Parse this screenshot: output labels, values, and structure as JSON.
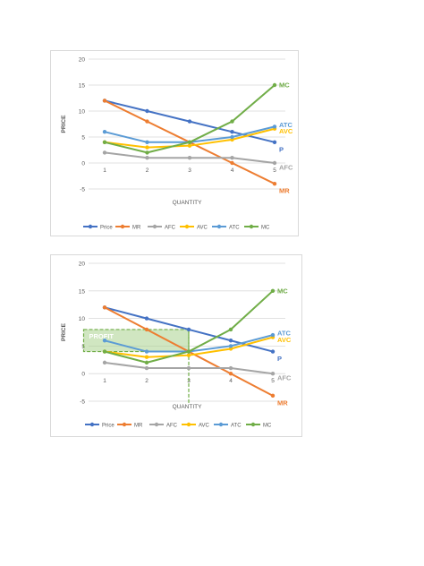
{
  "colors": {
    "Price": "#4472c4",
    "MR": "#ed7d31",
    "AFC": "#a5a5a5",
    "AVC": "#ffc000",
    "ATC": "#5b9bd5",
    "MC": "#70ad47",
    "grid": "#d9d9d9",
    "axis_text": "#595959",
    "profit_fill": "#a9d18e",
    "profit_border": "#70ad47",
    "profit_text": "#ffffff"
  },
  "chart_data": [
    {
      "type": "line",
      "x": [
        1,
        2,
        3,
        4,
        5
      ],
      "series": [
        {
          "name": "Price",
          "values": [
            12,
            10,
            8,
            6,
            4
          ]
        },
        {
          "name": "MR",
          "values": [
            12,
            8,
            4,
            0,
            -4
          ]
        },
        {
          "name": "AFC",
          "values": [
            2,
            1,
            1,
            1,
            0
          ]
        },
        {
          "name": "AVC",
          "values": [
            4,
            3,
            3.33,
            4.5,
            6.6
          ]
        },
        {
          "name": "ATC",
          "values": [
            6,
            4,
            4,
            5,
            7
          ]
        },
        {
          "name": "MC",
          "values": [
            4,
            2,
            4,
            8,
            15
          ]
        }
      ],
      "xlabel": "QUANTITY",
      "ylabel": "PRICE",
      "ylim": [
        -5,
        20
      ],
      "yticks": [
        "20",
        "15",
        "10",
        "5",
        "0",
        "-5"
      ],
      "xticks": [
        "1",
        "2",
        "3",
        "4",
        "5"
      ],
      "grid": true,
      "legend": "bottom",
      "end_labels": [
        {
          "series": "MC",
          "text": "MC"
        },
        {
          "series": "ATC",
          "text": "ATC"
        },
        {
          "series": "AVC",
          "text": "AVC"
        },
        {
          "series": "Price",
          "text": "P"
        },
        {
          "series": "AFC",
          "text": "AFC"
        },
        {
          "series": "MR",
          "text": "MR"
        }
      ]
    },
    {
      "type": "line",
      "x": [
        1,
        2,
        3,
        4,
        5
      ],
      "series": [
        {
          "name": "Price",
          "values": [
            12,
            10,
            8,
            6,
            4
          ]
        },
        {
          "name": "MR",
          "values": [
            12,
            8,
            4,
            0,
            -4
          ]
        },
        {
          "name": "AFC",
          "values": [
            2,
            1,
            1,
            1,
            0
          ]
        },
        {
          "name": "AVC",
          "values": [
            4,
            3,
            3.33,
            4.5,
            6.6
          ]
        },
        {
          "name": "ATC",
          "values": [
            6,
            4,
            4,
            5,
            7
          ]
        },
        {
          "name": "MC",
          "values": [
            4,
            2,
            4,
            8,
            15
          ]
        }
      ],
      "xlabel": "QUANTITY",
      "ylabel": "PRICE",
      "ylim": [
        -5,
        20
      ],
      "yticks": [
        "20",
        "15",
        "10",
        "5",
        "0",
        "-5"
      ],
      "xticks": [
        "1",
        "2",
        "3",
        "4",
        "5"
      ],
      "grid": true,
      "legend": "bottom",
      "end_labels": [
        {
          "series": "MC",
          "text": "MC"
        },
        {
          "series": "ATC",
          "text": "ATC"
        },
        {
          "series": "AVC",
          "text": "AVC"
        },
        {
          "series": "Price",
          "text": "P"
        },
        {
          "series": "AFC",
          "text": "AFC"
        },
        {
          "series": "MR",
          "text": "MR"
        }
      ],
      "annotation": {
        "text": "PROFIT",
        "x_range": [
          0.5,
          3
        ],
        "y_range": [
          4,
          8
        ],
        "profit_max_quantity": 3
      }
    }
  ]
}
